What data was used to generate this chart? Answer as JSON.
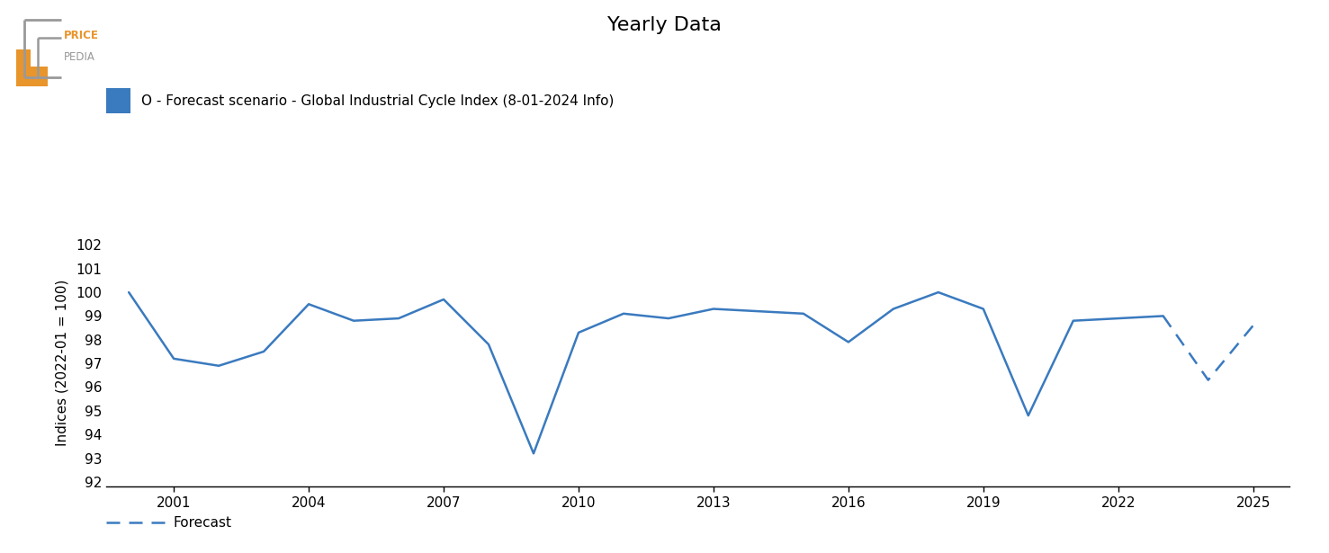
{
  "title": "Yearly Data",
  "ylabel": "Indices (2022-01 = 100)",
  "legend_label": "O - Forecast scenario - Global Industrial Cycle Index (8-01-2024 Info)",
  "line_color": "#3a7abf",
  "background_color": "#ffffff",
  "ylim": [
    91.8,
    102.3
  ],
  "yticks": [
    92,
    93,
    94,
    95,
    96,
    97,
    98,
    99,
    100,
    101,
    102
  ],
  "xticks": [
    2001,
    2004,
    2007,
    2010,
    2013,
    2016,
    2019,
    2022,
    2025
  ],
  "xlim": [
    1999.5,
    2025.8
  ],
  "solid_data": {
    "years": [
      2000,
      2001,
      2002,
      2003,
      2004,
      2005,
      2006,
      2007,
      2008,
      2009,
      2010,
      2011,
      2012,
      2013,
      2014,
      2015,
      2016,
      2017,
      2018,
      2019,
      2020,
      2021,
      2022,
      2023
    ],
    "values": [
      100.0,
      97.2,
      96.9,
      97.5,
      99.5,
      98.8,
      98.9,
      99.7,
      97.8,
      93.2,
      98.3,
      99.1,
      98.9,
      99.3,
      99.2,
      99.1,
      97.9,
      99.3,
      100.0,
      99.3,
      94.8,
      98.8,
      98.9,
      99.0
    ]
  },
  "dashed_data": {
    "years": [
      2023,
      2024,
      2025
    ],
    "values": [
      99.0,
      96.3,
      98.6
    ]
  },
  "forecast_label": "Forecast",
  "gray_color": "#999999",
  "orange_color": "#E8952C",
  "title_fontsize": 16,
  "tick_fontsize": 11,
  "legend_fontsize": 11
}
